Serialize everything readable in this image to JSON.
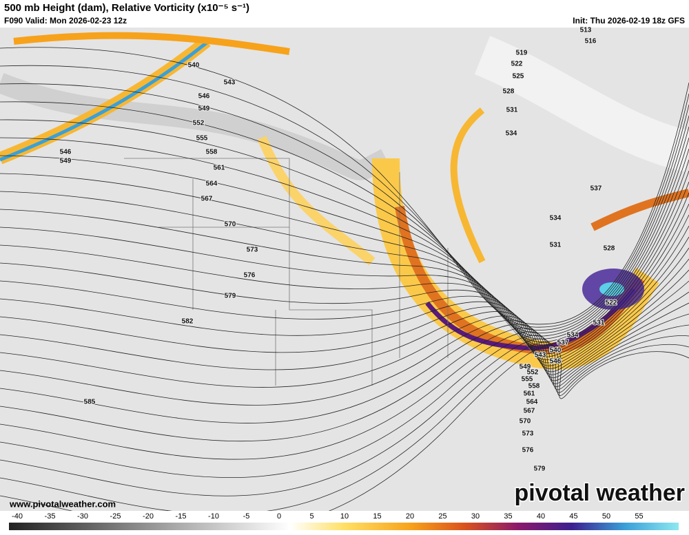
{
  "header": {
    "title": "500 mb Height (dam), Relative Vorticity (x10⁻⁵ s⁻¹)",
    "valid": "F090 Valid: Mon 2026-02-23 12z",
    "init": "Init: Thu 2026-02-19 18z GFS"
  },
  "contour_labels": [
    513,
    516,
    519,
    522,
    525,
    528,
    531,
    534,
    537,
    534,
    531,
    528,
    540,
    543,
    546,
    549,
    552,
    555,
    558,
    561,
    564,
    567,
    570,
    573,
    576,
    579,
    582,
    585,
    546,
    549,
    522,
    531,
    534,
    537,
    540,
    543,
    546,
    549,
    552,
    555,
    558,
    561,
    564,
    567,
    570,
    573,
    576,
    579
  ],
  "footer": {
    "url": "www.pivotalweather.com",
    "brand": "pivotal weather"
  },
  "colorbar": {
    "ticks": [
      -40,
      -35,
      -30,
      -25,
      -20,
      -15,
      -10,
      -5,
      0,
      5,
      10,
      15,
      20,
      25,
      30,
      35,
      40,
      45,
      50,
      55
    ]
  }
}
